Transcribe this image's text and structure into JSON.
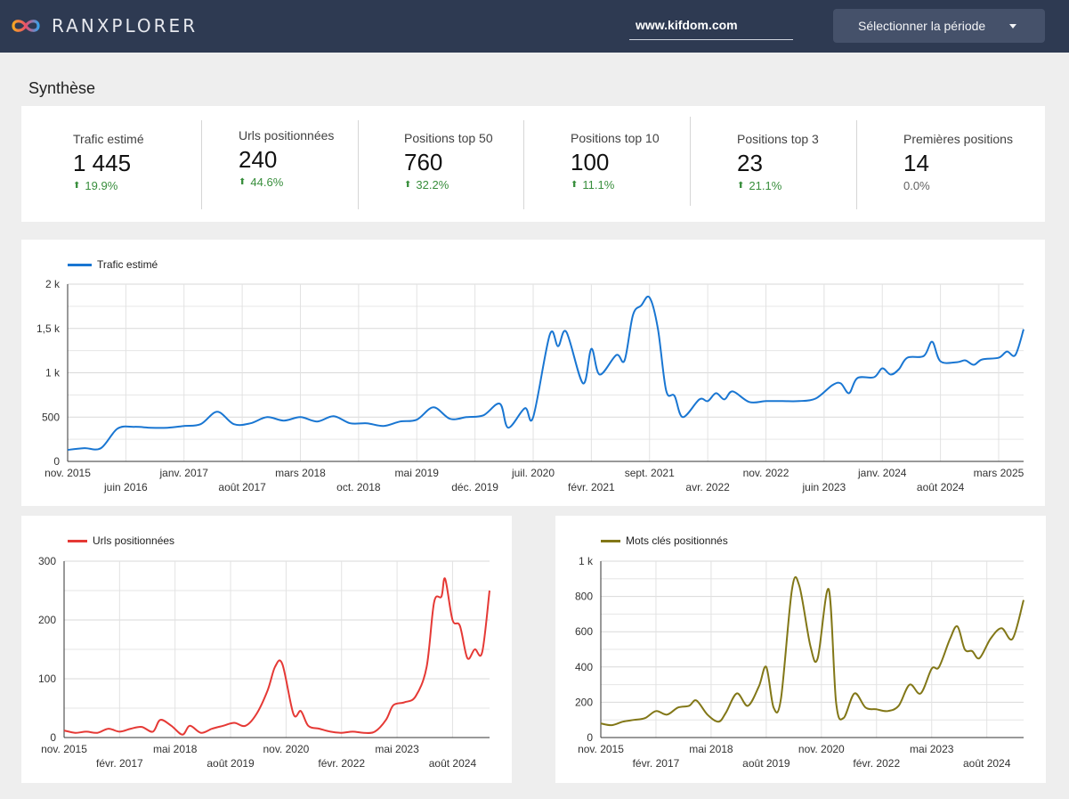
{
  "header": {
    "brand": "RANXPLORER",
    "domain_value": "www.kifdom.com",
    "period_button_label": "Sélectionner la période"
  },
  "section_title": "Synthèse",
  "kpis": [
    {
      "label": "Trafic estimé",
      "value": "1 445",
      "delta": "19.9%",
      "trend": "up"
    },
    {
      "label": "Urls positionnées",
      "value": "240",
      "delta": "44.6%",
      "trend": "up"
    },
    {
      "label": "Positions top 50",
      "value": "760",
      "delta": "32.2%",
      "trend": "up"
    },
    {
      "label": "Positions top 10",
      "value": "100",
      "delta": "11.1%",
      "trend": "up"
    },
    {
      "label": "Positions top 3",
      "value": "23",
      "delta": "21.1%",
      "trend": "up"
    },
    {
      "label": "Premières positions",
      "value": "14",
      "delta": "0.0%",
      "trend": "flat"
    }
  ],
  "colors": {
    "header_bg": "#2e3a52",
    "traffic_line": "#1976d2",
    "urls_line": "#e53935",
    "keywords_line": "#827717",
    "positive": "#388e3c"
  },
  "chart_data": [
    {
      "type": "line",
      "series": [
        {
          "name": "Trafic estimé",
          "color": "#1976d2"
        }
      ],
      "xlim": [
        "2015-11",
        "2025-06"
      ],
      "ylim": [
        0,
        2000
      ],
      "y_ticks": [
        {
          "v": 0,
          "label": "0"
        },
        {
          "v": 500,
          "label": "500"
        },
        {
          "v": 1000,
          "label": "1 k"
        },
        {
          "v": 1500,
          "label": "1,5 k"
        },
        {
          "v": 2000,
          "label": "2 k"
        }
      ],
      "x_ticks": [
        {
          "t": "2015-11",
          "label": "nov. 2015",
          "row": 1
        },
        {
          "t": "2016-06",
          "label": "juin 2016",
          "row": 2
        },
        {
          "t": "2017-01",
          "label": "janv. 2017",
          "row": 1
        },
        {
          "t": "2017-08",
          "label": "août 2017",
          "row": 2
        },
        {
          "t": "2018-03",
          "label": "mars 2018",
          "row": 1
        },
        {
          "t": "2018-10",
          "label": "oct. 2018",
          "row": 2
        },
        {
          "t": "2019-05",
          "label": "mai 2019",
          "row": 1
        },
        {
          "t": "2019-12",
          "label": "déc. 2019",
          "row": 2
        },
        {
          "t": "2020-07",
          "label": "juil. 2020",
          "row": 1
        },
        {
          "t": "2021-02",
          "label": "févr. 2021",
          "row": 2
        },
        {
          "t": "2021-09",
          "label": "sept. 2021",
          "row": 1
        },
        {
          "t": "2022-04",
          "label": "avr. 2022",
          "row": 2
        },
        {
          "t": "2022-11",
          "label": "nov. 2022",
          "row": 1
        },
        {
          "t": "2023-06",
          "label": "juin 2023",
          "row": 2
        },
        {
          "t": "2024-01",
          "label": "janv. 2024",
          "row": 1
        },
        {
          "t": "2024-08",
          "label": "août 2024",
          "row": 2
        },
        {
          "t": "2025-03",
          "label": "mars 2025",
          "row": 1
        }
      ],
      "points": [
        [
          "2015-11",
          130
        ],
        [
          "2016-01",
          150
        ],
        [
          "2016-03",
          150
        ],
        [
          "2016-05",
          370
        ],
        [
          "2016-07",
          390
        ],
        [
          "2016-09",
          380
        ],
        [
          "2016-11",
          380
        ],
        [
          "2017-01",
          400
        ],
        [
          "2017-03",
          420
        ],
        [
          "2017-05",
          560
        ],
        [
          "2017-07",
          420
        ],
        [
          "2017-09",
          430
        ],
        [
          "2017-11",
          500
        ],
        [
          "2018-01",
          460
        ],
        [
          "2018-03",
          500
        ],
        [
          "2018-05",
          450
        ],
        [
          "2018-07",
          510
        ],
        [
          "2018-09",
          430
        ],
        [
          "2018-11",
          430
        ],
        [
          "2019-01",
          400
        ],
        [
          "2019-03",
          450
        ],
        [
          "2019-05",
          470
        ],
        [
          "2019-07",
          610
        ],
        [
          "2019-09",
          480
        ],
        [
          "2019-11",
          500
        ],
        [
          "2020-01",
          520
        ],
        [
          "2020-03",
          650
        ],
        [
          "2020-04",
          380
        ],
        [
          "2020-06",
          600
        ],
        [
          "2020-07",
          500
        ],
        [
          "2020-09",
          1430
        ],
        [
          "2020-10",
          1300
        ],
        [
          "2020-11",
          1460
        ],
        [
          "2021-01",
          880
        ],
        [
          "2021-02",
          1270
        ],
        [
          "2021-03",
          980
        ],
        [
          "2021-05",
          1200
        ],
        [
          "2021-06",
          1140
        ],
        [
          "2021-07",
          1650
        ],
        [
          "2021-08",
          1760
        ],
        [
          "2021-09",
          1850
        ],
        [
          "2021-10",
          1500
        ],
        [
          "2021-11",
          800
        ],
        [
          "2021-12",
          740
        ],
        [
          "2022-01",
          500
        ],
        [
          "2022-03",
          700
        ],
        [
          "2022-04",
          680
        ],
        [
          "2022-05",
          770
        ],
        [
          "2022-06",
          700
        ],
        [
          "2022-07",
          790
        ],
        [
          "2022-09",
          670
        ],
        [
          "2022-11",
          680
        ],
        [
          "2023-01",
          680
        ],
        [
          "2023-03",
          680
        ],
        [
          "2023-05",
          710
        ],
        [
          "2023-07",
          860
        ],
        [
          "2023-08",
          880
        ],
        [
          "2023-09",
          770
        ],
        [
          "2023-10",
          940
        ],
        [
          "2023-12",
          950
        ],
        [
          "2024-01",
          1050
        ],
        [
          "2024-02",
          980
        ],
        [
          "2024-03",
          1040
        ],
        [
          "2024-04",
          1170
        ],
        [
          "2024-06",
          1190
        ],
        [
          "2024-07",
          1350
        ],
        [
          "2024-08",
          1130
        ],
        [
          "2024-10",
          1120
        ],
        [
          "2024-11",
          1140
        ],
        [
          "2024-12",
          1090
        ],
        [
          "2025-01",
          1150
        ],
        [
          "2025-03",
          1170
        ],
        [
          "2025-04",
          1240
        ],
        [
          "2025-05",
          1200
        ],
        [
          "2025-06",
          1490
        ]
      ]
    },
    {
      "type": "line",
      "series": [
        {
          "name": "Urls positionnées",
          "color": "#e53935"
        }
      ],
      "xlim": [
        "2015-11",
        "2025-06"
      ],
      "ylim": [
        0,
        300
      ],
      "y_ticks": [
        {
          "v": 0,
          "label": "0"
        },
        {
          "v": 100,
          "label": "100"
        },
        {
          "v": 200,
          "label": "200"
        },
        {
          "v": 300,
          "label": "300"
        }
      ],
      "x_ticks": [
        {
          "t": "2015-11",
          "label": "nov. 2015",
          "row": 1
        },
        {
          "t": "2017-02",
          "label": "févr. 2017",
          "row": 2
        },
        {
          "t": "2018-05",
          "label": "mai 2018",
          "row": 1
        },
        {
          "t": "2019-08",
          "label": "août 2019",
          "row": 2
        },
        {
          "t": "2020-11",
          "label": "nov. 2020",
          "row": 1
        },
        {
          "t": "2022-02",
          "label": "févr. 2022",
          "row": 2
        },
        {
          "t": "2023-05",
          "label": "mai 2023",
          "row": 1
        },
        {
          "t": "2024-08",
          "label": "août 2024",
          "row": 2
        }
      ],
      "points": [
        [
          "2015-11",
          12
        ],
        [
          "2016-02",
          8
        ],
        [
          "2016-05",
          10
        ],
        [
          "2016-08",
          8
        ],
        [
          "2016-11",
          15
        ],
        [
          "2017-02",
          10
        ],
        [
          "2017-05",
          15
        ],
        [
          "2017-08",
          18
        ],
        [
          "2017-11",
          10
        ],
        [
          "2018-01",
          30
        ],
        [
          "2018-04",
          20
        ],
        [
          "2018-07",
          5
        ],
        [
          "2018-09",
          20
        ],
        [
          "2018-12",
          8
        ],
        [
          "2019-03",
          15
        ],
        [
          "2019-06",
          20
        ],
        [
          "2019-09",
          25
        ],
        [
          "2019-12",
          20
        ],
        [
          "2020-03",
          40
        ],
        [
          "2020-06",
          80
        ],
        [
          "2020-08",
          120
        ],
        [
          "2020-10",
          125
        ],
        [
          "2021-01",
          40
        ],
        [
          "2021-03",
          45
        ],
        [
          "2021-05",
          20
        ],
        [
          "2021-08",
          15
        ],
        [
          "2021-11",
          10
        ],
        [
          "2022-02",
          8
        ],
        [
          "2022-05",
          10
        ],
        [
          "2022-08",
          8
        ],
        [
          "2022-11",
          10
        ],
        [
          "2023-02",
          30
        ],
        [
          "2023-04",
          55
        ],
        [
          "2023-07",
          60
        ],
        [
          "2023-10",
          70
        ],
        [
          "2024-01",
          120
        ],
        [
          "2024-03",
          230
        ],
        [
          "2024-05",
          240
        ],
        [
          "2024-06",
          270
        ],
        [
          "2024-08",
          200
        ],
        [
          "2024-10",
          190
        ],
        [
          "2024-12",
          135
        ],
        [
          "2025-02",
          150
        ],
        [
          "2025-04",
          145
        ],
        [
          "2025-06",
          250
        ]
      ]
    },
    {
      "type": "line",
      "series": [
        {
          "name": "Mots clés positionnés",
          "color": "#827717"
        }
      ],
      "xlim": [
        "2015-11",
        "2025-06"
      ],
      "ylim": [
        0,
        1000
      ],
      "y_ticks": [
        {
          "v": 0,
          "label": "0"
        },
        {
          "v": 200,
          "label": "200"
        },
        {
          "v": 400,
          "label": "400"
        },
        {
          "v": 600,
          "label": "600"
        },
        {
          "v": 800,
          "label": "800"
        },
        {
          "v": 1000,
          "label": "1 k"
        }
      ],
      "x_ticks": [
        {
          "t": "2015-11",
          "label": "nov. 2015",
          "row": 1
        },
        {
          "t": "2017-02",
          "label": "févr. 2017",
          "row": 2
        },
        {
          "t": "2018-05",
          "label": "mai 2018",
          "row": 1
        },
        {
          "t": "2019-08",
          "label": "août 2019",
          "row": 2
        },
        {
          "t": "2020-11",
          "label": "nov. 2020",
          "row": 1
        },
        {
          "t": "2022-02",
          "label": "févr. 2022",
          "row": 2
        },
        {
          "t": "2023-05",
          "label": "mai 2023",
          "row": 1
        },
        {
          "t": "2024-08",
          "label": "août 2024",
          "row": 2
        }
      ],
      "points": [
        [
          "2015-11",
          80
        ],
        [
          "2016-02",
          70
        ],
        [
          "2016-05",
          90
        ],
        [
          "2016-08",
          100
        ],
        [
          "2016-11",
          110
        ],
        [
          "2017-02",
          150
        ],
        [
          "2017-05",
          130
        ],
        [
          "2017-08",
          170
        ],
        [
          "2017-11",
          180
        ],
        [
          "2018-01",
          210
        ],
        [
          "2018-04",
          130
        ],
        [
          "2018-07",
          90
        ],
        [
          "2018-09",
          140
        ],
        [
          "2018-12",
          250
        ],
        [
          "2019-03",
          180
        ],
        [
          "2019-06",
          290
        ],
        [
          "2019-08",
          400
        ],
        [
          "2019-10",
          170
        ],
        [
          "2019-12",
          220
        ],
        [
          "2020-03",
          840
        ],
        [
          "2020-05",
          860
        ],
        [
          "2020-08",
          520
        ],
        [
          "2020-10",
          450
        ],
        [
          "2021-01",
          840
        ],
        [
          "2021-03",
          200
        ],
        [
          "2021-05",
          110
        ],
        [
          "2021-08",
          250
        ],
        [
          "2021-11",
          170
        ],
        [
          "2022-02",
          160
        ],
        [
          "2022-05",
          150
        ],
        [
          "2022-08",
          180
        ],
        [
          "2022-11",
          300
        ],
        [
          "2023-02",
          250
        ],
        [
          "2023-05",
          390
        ],
        [
          "2023-07",
          400
        ],
        [
          "2023-10",
          560
        ],
        [
          "2023-12",
          630
        ],
        [
          "2024-02",
          500
        ],
        [
          "2024-04",
          490
        ],
        [
          "2024-06",
          450
        ],
        [
          "2024-09",
          560
        ],
        [
          "2024-12",
          620
        ],
        [
          "2025-03",
          560
        ],
        [
          "2025-06",
          780
        ]
      ]
    }
  ]
}
